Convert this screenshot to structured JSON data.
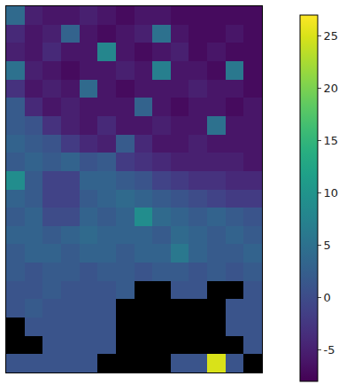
{
  "chart_data": {
    "type": "heatmap",
    "tick_labels": false,
    "cells": [
      [
        4,
        -5,
        -6,
        -6,
        -5,
        -6,
        -7,
        -6,
        -6,
        -7,
        -7,
        -7,
        -7,
        -7
      ],
      [
        -4,
        -6,
        -5,
        3,
        -6,
        -7,
        -6,
        -5,
        5,
        -6,
        -7,
        -7,
        -6,
        -7
      ],
      [
        -5,
        -6,
        -4,
        -6,
        -6,
        8,
        -6,
        -7,
        -6,
        -5,
        -7,
        -6,
        -7,
        -7
      ],
      [
        5,
        -5,
        -6,
        -7,
        -6,
        -6,
        -5,
        -6,
        7,
        -6,
        -6,
        -7,
        6,
        -7
      ],
      [
        -3,
        -6,
        -5,
        -6,
        4,
        -6,
        -7,
        -6,
        -6,
        -6,
        -5,
        -6,
        -6,
        -7
      ],
      [
        2,
        -4,
        -6,
        -5,
        -6,
        -6,
        -6,
        3,
        -6,
        -7,
        -6,
        -6,
        -7,
        -6
      ],
      [
        2,
        1,
        -3,
        -5,
        -6,
        -4,
        -6,
        -6,
        -5,
        -6,
        -6,
        5,
        -6,
        -6
      ],
      [
        3,
        2,
        1,
        -2,
        -4,
        -5,
        2,
        -4,
        -6,
        -6,
        -5,
        -6,
        -6,
        -6
      ],
      [
        2,
        3,
        2,
        3,
        1,
        2,
        -2,
        -3,
        -4,
        -5,
        -5,
        -5,
        -5,
        -6
      ],
      [
        9,
        2,
        -1,
        -1,
        3,
        3,
        2,
        1,
        -1,
        -2,
        -3,
        -3,
        -4,
        -4
      ],
      [
        3,
        2,
        -1,
        -1,
        2,
        3,
        4,
        3,
        2,
        1,
        0,
        -1,
        -2,
        -2
      ],
      [
        2,
        3,
        0,
        0,
        3,
        2,
        3,
        9,
        4,
        3,
        2,
        3,
        2,
        1
      ],
      [
        3,
        3,
        2,
        3,
        4,
        3,
        3,
        3,
        2,
        4,
        3,
        2,
        3,
        2
      ],
      [
        2,
        3,
        3,
        2,
        3,
        3,
        2,
        3,
        3,
        6,
        3,
        2,
        2,
        3
      ],
      [
        2,
        1,
        2,
        2,
        1,
        2,
        2,
        1,
        2,
        2,
        1,
        2,
        1,
        2
      ],
      [
        1,
        1,
        2,
        1,
        1,
        1,
        2,
        null,
        null,
        1,
        1,
        null,
        null,
        1
      ],
      [
        1,
        2,
        1,
        1,
        1,
        1,
        null,
        null,
        null,
        null,
        null,
        null,
        1,
        1
      ],
      [
        null,
        1,
        1,
        1,
        1,
        1,
        null,
        null,
        null,
        null,
        null,
        null,
        1,
        1
      ],
      [
        null,
        null,
        1,
        1,
        1,
        1,
        null,
        null,
        null,
        null,
        null,
        null,
        null,
        1
      ],
      [
        1,
        1,
        1,
        1,
        1,
        null,
        null,
        null,
        null,
        1,
        1,
        25,
        1,
        null
      ]
    ],
    "colorbar": {
      "range": [
        -8,
        27
      ],
      "ticks": [
        -5,
        0,
        5,
        10,
        15,
        20,
        25
      ]
    }
  }
}
